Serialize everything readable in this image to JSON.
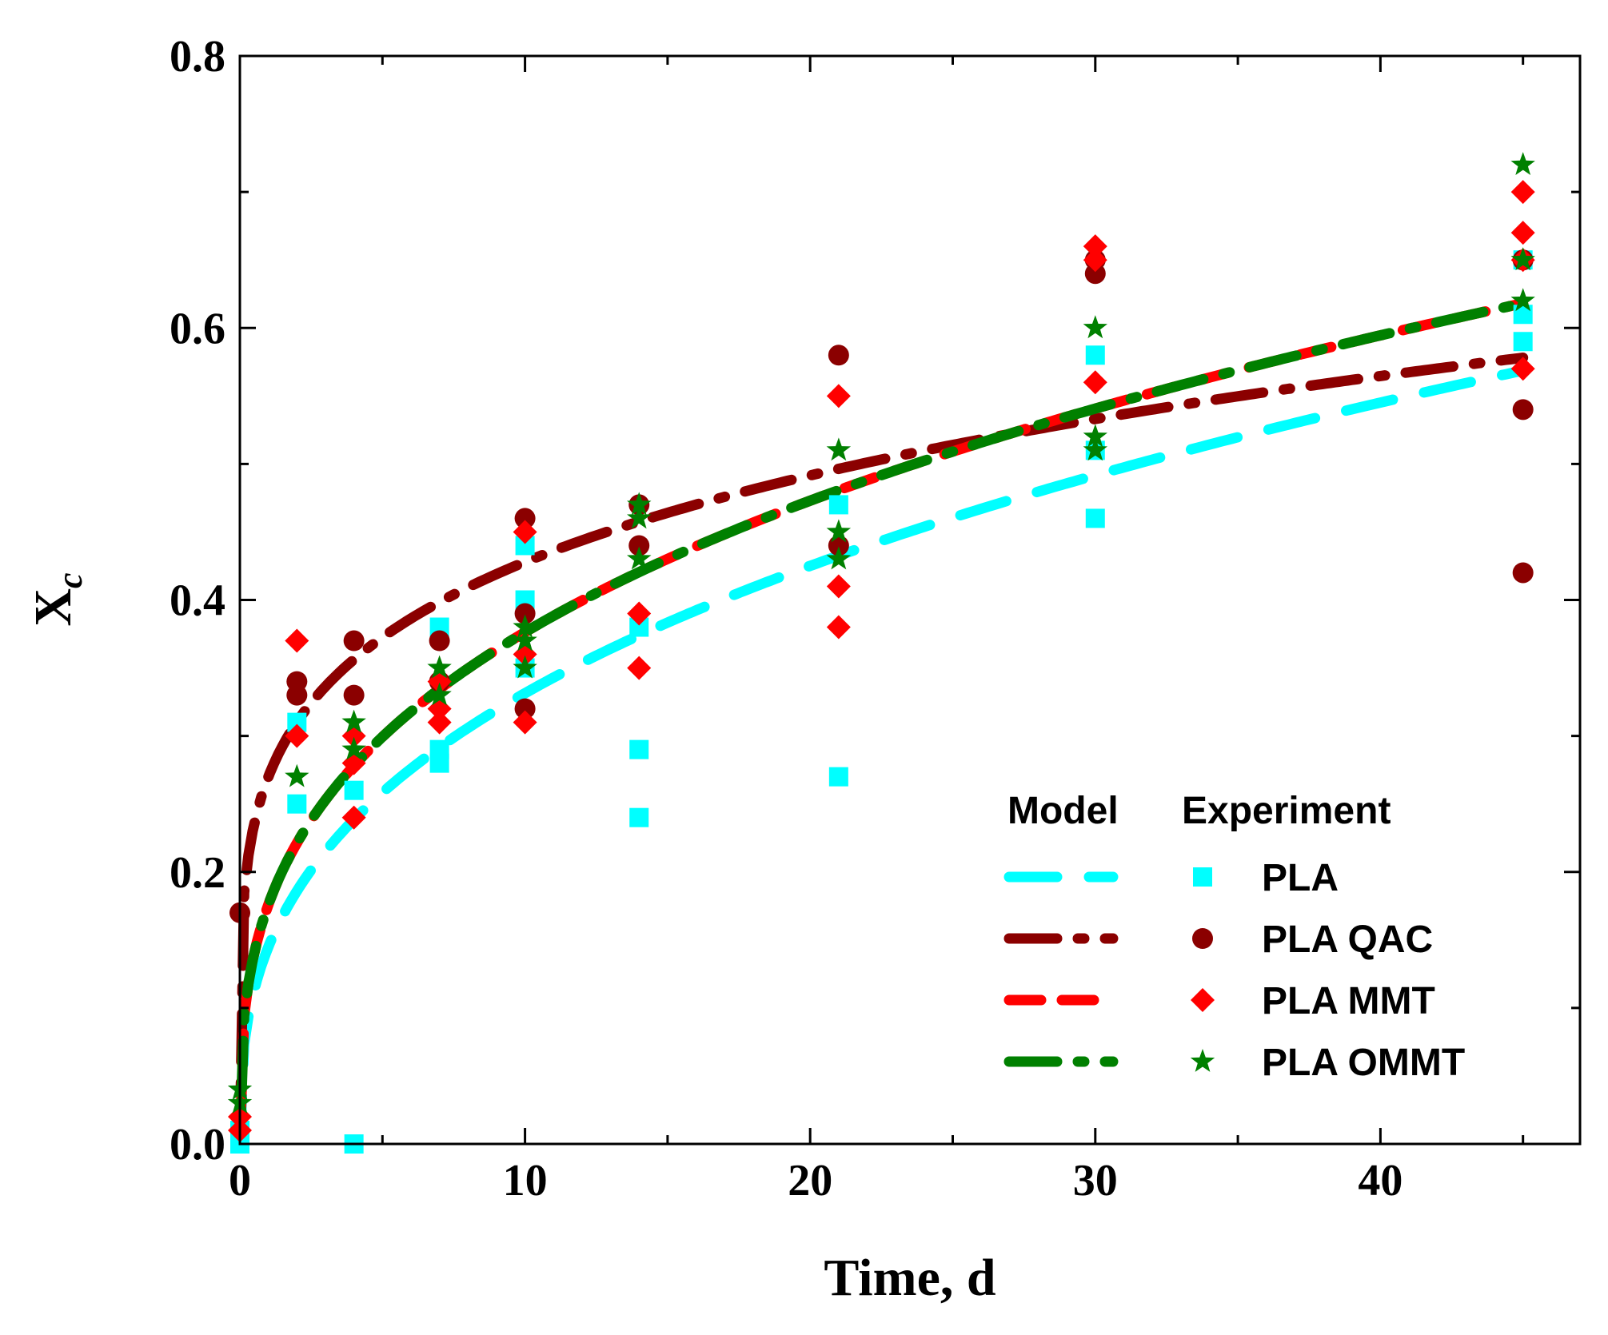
{
  "chart_data": {
    "type": "scatter",
    "xlabel": "Time, d",
    "ylabel_main": "X",
    "ylabel_sub": "c",
    "xlim": [
      0,
      47
    ],
    "ylim": [
      0,
      0.8
    ],
    "xticks": [
      0,
      10,
      20,
      30,
      40
    ],
    "xtick_labels": [
      "0",
      "10",
      "20",
      "30",
      "40"
    ],
    "yticks": [
      0.0,
      0.2,
      0.4,
      0.6,
      0.8
    ],
    "ytick_labels": [
      "0.0",
      "0.2",
      "0.4",
      "0.6",
      "0.8"
    ],
    "x_minor_step": 5,
    "y_minor_step": 0.1,
    "legend": {
      "position": "bottom-right",
      "header_model": "Model",
      "header_experiment": "Experiment"
    },
    "series": [
      {
        "name": "PLA",
        "color": "#00ffff",
        "marker": "square",
        "line_style": "long-dash",
        "model": {
          "a": 0.145,
          "b": 0.359
        },
        "points": [
          [
            0,
            0.0
          ],
          [
            0,
            0.01
          ],
          [
            2,
            0.25
          ],
          [
            2,
            0.31
          ],
          [
            4,
            0.26
          ],
          [
            4,
            0.0
          ],
          [
            7,
            0.28
          ],
          [
            7,
            0.29
          ],
          [
            7,
            0.38
          ],
          [
            10,
            0.35
          ],
          [
            10,
            0.4
          ],
          [
            10,
            0.44
          ],
          [
            14,
            0.24
          ],
          [
            14,
            0.29
          ],
          [
            14,
            0.38
          ],
          [
            21,
            0.27
          ],
          [
            21,
            0.47
          ],
          [
            30,
            0.46
          ],
          [
            30,
            0.51
          ],
          [
            30,
            0.58
          ],
          [
            45,
            0.59
          ],
          [
            45,
            0.61
          ],
          [
            45,
            0.65
          ]
        ]
      },
      {
        "name": "PLA QAC",
        "color": "#8b0000",
        "marker": "circle",
        "line_style": "dash-dot",
        "model": {
          "a": 0.27,
          "b": 0.2
        },
        "points": [
          [
            0,
            0.17
          ],
          [
            2,
            0.33
          ],
          [
            2,
            0.34
          ],
          [
            4,
            0.33
          ],
          [
            4,
            0.37
          ],
          [
            7,
            0.34
          ],
          [
            7,
            0.37
          ],
          [
            10,
            0.32
          ],
          [
            10,
            0.39
          ],
          [
            10,
            0.46
          ],
          [
            14,
            0.44
          ],
          [
            14,
            0.47
          ],
          [
            21,
            0.44
          ],
          [
            21,
            0.58
          ],
          [
            30,
            0.64
          ],
          [
            30,
            0.65
          ],
          [
            45,
            0.42
          ],
          [
            45,
            0.54
          ],
          [
            45,
            0.65
          ]
        ]
      },
      {
        "name": "PLA MMT",
        "color": "#ff0000",
        "marker": "diamond",
        "line_style": "short-dash",
        "model": {
          "a": 0.176,
          "b": 0.33
        },
        "points": [
          [
            0,
            0.01
          ],
          [
            0,
            0.02
          ],
          [
            2,
            0.3
          ],
          [
            2,
            0.37
          ],
          [
            4,
            0.24
          ],
          [
            4,
            0.28
          ],
          [
            4,
            0.3
          ],
          [
            7,
            0.31
          ],
          [
            7,
            0.32
          ],
          [
            7,
            0.34
          ],
          [
            10,
            0.31
          ],
          [
            10,
            0.36
          ],
          [
            10,
            0.45
          ],
          [
            14,
            0.35
          ],
          [
            14,
            0.39
          ],
          [
            21,
            0.38
          ],
          [
            21,
            0.41
          ],
          [
            21,
            0.55
          ],
          [
            30,
            0.56
          ],
          [
            30,
            0.65
          ],
          [
            30,
            0.66
          ],
          [
            45,
            0.57
          ],
          [
            45,
            0.65
          ],
          [
            45,
            0.67
          ],
          [
            45,
            0.7
          ]
        ]
      },
      {
        "name": "PLA OMMT",
        "color": "#008000",
        "marker": "star",
        "line_style": "dash-dot",
        "model": {
          "a": 0.176,
          "b": 0.33
        },
        "points": [
          [
            0,
            0.03
          ],
          [
            0,
            0.04
          ],
          [
            2,
            0.27
          ],
          [
            4,
            0.29
          ],
          [
            4,
            0.31
          ],
          [
            7,
            0.33
          ],
          [
            7,
            0.35
          ],
          [
            10,
            0.35
          ],
          [
            10,
            0.37
          ],
          [
            10,
            0.38
          ],
          [
            14,
            0.43
          ],
          [
            14,
            0.46
          ],
          [
            14,
            0.47
          ],
          [
            21,
            0.43
          ],
          [
            21,
            0.45
          ],
          [
            21,
            0.51
          ],
          [
            30,
            0.51
          ],
          [
            30,
            0.52
          ],
          [
            30,
            0.6
          ],
          [
            45,
            0.62
          ],
          [
            45,
            0.65
          ],
          [
            45,
            0.72
          ]
        ]
      }
    ]
  }
}
